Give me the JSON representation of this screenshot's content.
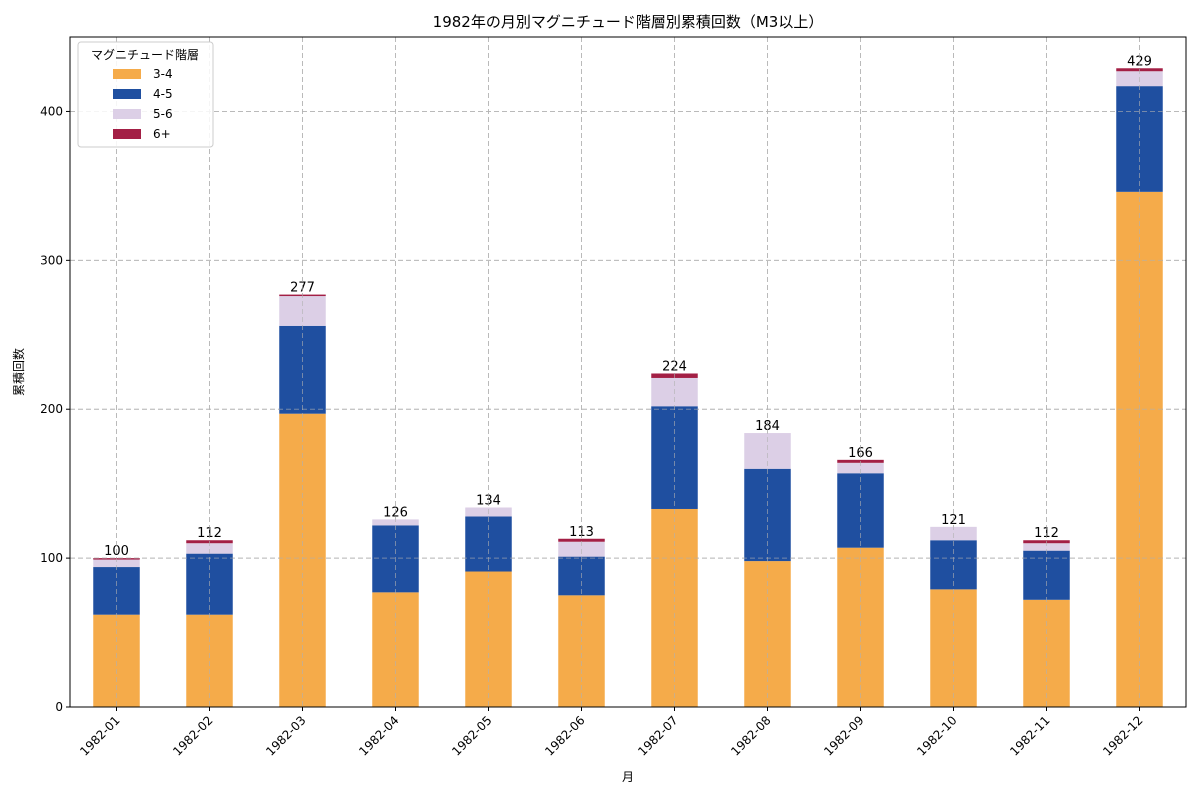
{
  "chart_data": {
    "type": "bar",
    "stacked": true,
    "title": "1982年の月別マグニチュード階層別累積回数（M3以上）",
    "xlabel": "月",
    "ylabel": "累積回数",
    "ylim": [
      0,
      450
    ],
    "yticks": [
      0,
      100,
      200,
      300,
      400
    ],
    "grid": true,
    "legend": {
      "title": "マグニチュード階層",
      "placement": "top-left"
    },
    "categories": [
      "1982-01",
      "1982-02",
      "1982-03",
      "1982-04",
      "1982-05",
      "1982-06",
      "1982-07",
      "1982-08",
      "1982-09",
      "1982-10",
      "1982-11",
      "1982-12"
    ],
    "series": [
      {
        "name": "3-4",
        "color": "#f5ab4a",
        "values": [
          62,
          62,
          197,
          77,
          91,
          75,
          133,
          98,
          107,
          79,
          72,
          346
        ]
      },
      {
        "name": "4-5",
        "color": "#1f4fa0",
        "values": [
          32,
          41,
          59,
          45,
          37,
          26,
          69,
          62,
          50,
          33,
          33,
          71
        ]
      },
      {
        "name": "5-6",
        "color": "#dccfe6",
        "values": [
          5,
          7,
          20,
          4,
          6,
          10,
          19,
          24,
          7,
          9,
          5,
          10
        ]
      },
      {
        "name": "6+",
        "color": "#a31f45",
        "values": [
          1,
          2,
          1,
          0,
          0,
          2,
          3,
          0,
          2,
          0,
          2,
          2
        ]
      }
    ],
    "totals": [
      100,
      112,
      277,
      126,
      134,
      113,
      224,
      184,
      166,
      121,
      112,
      429
    ]
  }
}
